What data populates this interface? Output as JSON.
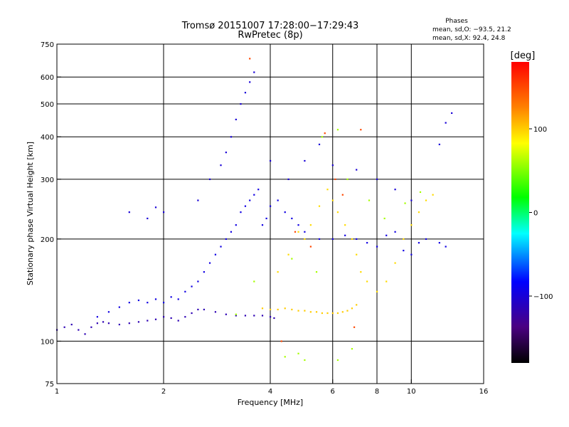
{
  "chart_data": {
    "type": "scatter",
    "title_line1": "Tromsø 20151007 17:28:00−17:29:43",
    "title_line2": "RwPretec (8p)",
    "xlabel": "Frequency [MHz]",
    "ylabel": "Stationary phase Virtual Height [km]",
    "x_scale": "log",
    "y_scale": "log",
    "xlim": [
      1,
      16
    ],
    "ylim": [
      75,
      750
    ],
    "x_ticks": [
      1,
      2,
      4,
      6,
      8,
      10,
      16
    ],
    "x_tick_labels": [
      "1",
      "2",
      "4",
      "6",
      "8",
      "10",
      "16"
    ],
    "x_grid": [
      2,
      4,
      6,
      8,
      10
    ],
    "y_ticks": [
      75,
      100,
      200,
      300,
      400,
      500,
      600,
      750
    ],
    "y_tick_labels": [
      "75",
      "100",
      "200",
      "300",
      "400",
      "500",
      "600",
      "750"
    ],
    "y_grid": [
      100,
      200,
      300,
      400,
      500,
      600
    ],
    "grid": true,
    "stats": {
      "header": "Phases",
      "line_o": "mean, sd,O: −93.5, 21.2",
      "line_x": "mean, sd,X:  92.4, 24.8"
    },
    "colorbar": {
      "label": "[deg]",
      "range": [
        -180,
        180
      ],
      "ticks": [
        100,
        0,
        -100
      ],
      "tick_labels": [
        "100",
        "0",
        "−100"
      ],
      "colors": [
        "#ff0000",
        "#ff8000",
        "#ffff00",
        "#00ff00",
        "#00ffff",
        "#0000ff",
        "#4b0082",
        "#000000"
      ]
    },
    "series": [
      {
        "trace": "o-mode-low",
        "phase": -115,
        "points": [
          [
            1.0,
            108
          ],
          [
            1.05,
            110
          ],
          [
            1.1,
            112
          ],
          [
            1.15,
            108
          ],
          [
            1.2,
            105
          ],
          [
            1.25,
            110
          ],
          [
            1.3,
            113
          ],
          [
            1.35,
            114
          ],
          [
            1.4,
            113
          ],
          [
            1.5,
            112
          ],
          [
            1.6,
            113
          ],
          [
            1.7,
            114
          ],
          [
            1.8,
            115
          ],
          [
            1.9,
            116
          ],
          [
            2.0,
            118
          ],
          [
            2.1,
            117
          ],
          [
            2.2,
            115
          ],
          [
            2.3,
            118
          ],
          [
            2.4,
            121
          ],
          [
            2.5,
            124
          ],
          [
            2.6,
            124
          ],
          [
            2.8,
            122
          ],
          [
            3.0,
            120
          ],
          [
            3.2,
            119
          ],
          [
            3.4,
            119
          ],
          [
            3.6,
            119
          ],
          [
            3.8,
            119
          ],
          [
            4.0,
            118
          ],
          [
            4.1,
            117
          ]
        ]
      },
      {
        "trace": "o-mode-spread",
        "phase": -95,
        "points": [
          [
            1.3,
            118
          ],
          [
            1.4,
            122
          ],
          [
            1.5,
            126
          ],
          [
            1.6,
            130
          ],
          [
            1.7,
            132
          ],
          [
            1.8,
            130
          ],
          [
            1.9,
            133
          ],
          [
            2.0,
            130
          ],
          [
            2.1,
            135
          ],
          [
            2.2,
            133
          ],
          [
            2.3,
            140
          ],
          [
            2.4,
            145
          ],
          [
            2.5,
            150
          ],
          [
            2.6,
            160
          ],
          [
            2.7,
            170
          ],
          [
            2.8,
            180
          ],
          [
            2.9,
            190
          ],
          [
            3.0,
            200
          ],
          [
            3.1,
            210
          ],
          [
            3.2,
            220
          ],
          [
            3.3,
            240
          ],
          [
            3.4,
            250
          ],
          [
            3.5,
            260
          ],
          [
            3.6,
            270
          ],
          [
            3.7,
            280
          ],
          [
            3.8,
            220
          ],
          [
            3.9,
            230
          ],
          [
            4.0,
            250
          ],
          [
            4.2,
            260
          ],
          [
            4.4,
            240
          ],
          [
            4.6,
            230
          ],
          [
            4.8,
            220
          ],
          [
            5.0,
            210
          ],
          [
            5.5,
            200
          ],
          [
            6.0,
            200
          ],
          [
            6.5,
            205
          ],
          [
            7.0,
            200
          ],
          [
            7.5,
            195
          ],
          [
            8.0,
            190
          ],
          [
            8.5,
            205
          ],
          [
            9.0,
            210
          ],
          [
            9.5,
            185
          ],
          [
            10.0,
            180
          ],
          [
            10.5,
            195
          ],
          [
            11.0,
            200
          ],
          [
            12.0,
            195
          ],
          [
            12.5,
            190
          ]
        ]
      },
      {
        "trace": "o-mode-high",
        "phase": -100,
        "points": [
          [
            1.6,
            240
          ],
          [
            1.8,
            230
          ],
          [
            1.9,
            248
          ],
          [
            2.0,
            240
          ],
          [
            2.5,
            260
          ],
          [
            2.7,
            300
          ],
          [
            2.9,
            330
          ],
          [
            3.0,
            360
          ],
          [
            3.1,
            400
          ],
          [
            3.2,
            450
          ],
          [
            3.3,
            500
          ],
          [
            3.4,
            540
          ],
          [
            3.5,
            580
          ],
          [
            3.6,
            620
          ],
          [
            4.0,
            340
          ],
          [
            4.5,
            300
          ],
          [
            5.0,
            340
          ],
          [
            5.5,
            380
          ],
          [
            6.0,
            330
          ],
          [
            7.0,
            320
          ],
          [
            8.0,
            300
          ],
          [
            9.0,
            280
          ],
          [
            10.0,
            260
          ],
          [
            12.0,
            380
          ],
          [
            12.5,
            440
          ],
          [
            13.0,
            470
          ]
        ]
      },
      {
        "trace": "x-mode-band",
        "phase": 100,
        "points": [
          [
            3.8,
            125
          ],
          [
            4.0,
            124
          ],
          [
            4.2,
            124
          ],
          [
            4.4,
            125
          ],
          [
            4.6,
            124
          ],
          [
            4.8,
            123
          ],
          [
            5.0,
            123
          ],
          [
            5.2,
            122
          ],
          [
            5.4,
            122
          ],
          [
            5.6,
            121
          ],
          [
            5.8,
            121
          ],
          [
            6.0,
            121
          ],
          [
            6.2,
            121
          ],
          [
            6.4,
            122
          ],
          [
            6.6,
            123
          ],
          [
            6.8,
            125
          ],
          [
            7.0,
            128
          ]
        ]
      },
      {
        "trace": "x-mode-spread",
        "phase": 95,
        "points": [
          [
            4.2,
            160
          ],
          [
            4.5,
            180
          ],
          [
            4.8,
            210
          ],
          [
            5.0,
            200
          ],
          [
            5.2,
            220
          ],
          [
            5.5,
            250
          ],
          [
            5.8,
            280
          ],
          [
            6.0,
            260
          ],
          [
            6.2,
            240
          ],
          [
            6.5,
            220
          ],
          [
            6.8,
            200
          ],
          [
            7.0,
            180
          ],
          [
            7.2,
            160
          ],
          [
            7.5,
            150
          ],
          [
            8.0,
            140
          ],
          [
            8.5,
            150
          ],
          [
            9.0,
            170
          ],
          [
            9.5,
            200
          ],
          [
            10.0,
            220
          ],
          [
            10.5,
            240
          ],
          [
            11.0,
            260
          ],
          [
            11.5,
            270
          ]
        ]
      },
      {
        "trace": "scattered-echoes",
        "phase": 60,
        "points": [
          [
            3.2,
            120
          ],
          [
            3.6,
            150
          ],
          [
            4.6,
            175
          ],
          [
            5.4,
            160
          ],
          [
            6.6,
            300
          ],
          [
            7.6,
            260
          ],
          [
            8.4,
            230
          ],
          [
            9.6,
            255
          ],
          [
            10.6,
            275
          ],
          [
            5.6,
            400
          ],
          [
            6.2,
            420
          ],
          [
            4.4,
            90
          ],
          [
            4.8,
            92
          ],
          [
            5.0,
            88
          ],
          [
            6.2,
            88
          ],
          [
            6.8,
            95
          ]
        ]
      },
      {
        "trace": "warm-echoes",
        "phase": 150,
        "points": [
          [
            3.5,
            680
          ],
          [
            5.7,
            410
          ],
          [
            6.1,
            300
          ],
          [
            4.7,
            210
          ],
          [
            5.2,
            190
          ],
          [
            7.2,
            420
          ],
          [
            6.4,
            270
          ],
          [
            4.3,
            100
          ],
          [
            6.9,
            110
          ]
        ]
      }
    ]
  }
}
